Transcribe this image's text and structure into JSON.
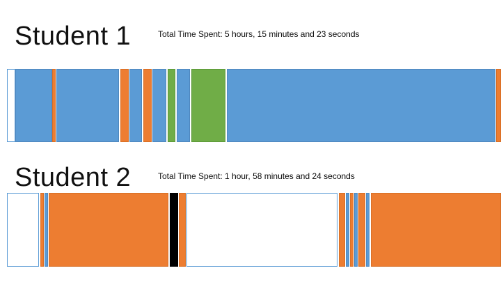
{
  "colors": {
    "blue": "#5b9bd5",
    "orange": "#ed7d31",
    "green": "#70ad47",
    "black": "#000000",
    "white": "#ffffff",
    "outline_blue": "#4f88bf",
    "outline_orange": "#d86f25",
    "outline_green": "#5c9a38",
    "outline_white": "#5b9bd5"
  },
  "students": [
    {
      "title": "Student 1",
      "total_time": "Total Time Spent: 5 hours, 15 minutes and 23 seconds"
    },
    {
      "title": "Student 2",
      "total_time": "Total Time Spent: 1 hour, 58 minutes and 24 seconds"
    }
  ]
}
